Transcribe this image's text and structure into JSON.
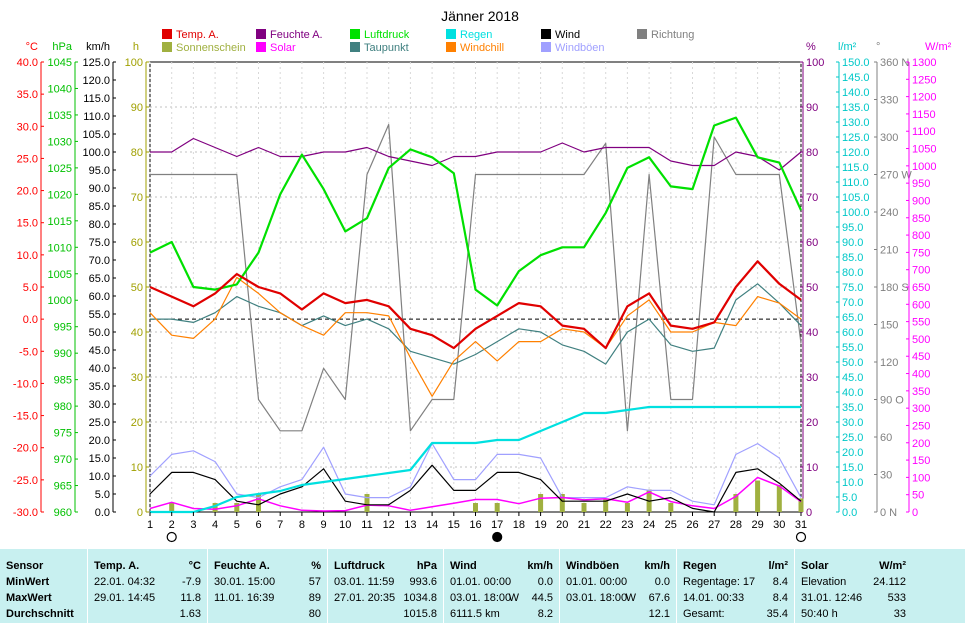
{
  "title": "Jänner 2018",
  "axes": {
    "left": [
      {
        "unit": "°C",
        "color": "#ff0000",
        "ticks": [
          "40.0",
          "35.0",
          "30.0",
          "25.0",
          "20.0",
          "15.0",
          "10.0",
          "5.0",
          "0.0",
          "-5.0",
          "-10.0",
          "-15.0",
          "-20.0",
          "-25.0",
          "-30.0"
        ]
      },
      {
        "unit": "hPa",
        "color": "#00c000",
        "ticks": [
          "1045",
          "1040",
          "1035",
          "1030",
          "1025",
          "1020",
          "1015",
          "1010",
          "1005",
          "1000",
          "995",
          "990",
          "985",
          "980",
          "975",
          "970",
          "965",
          "960"
        ]
      },
      {
        "unit": "km/h",
        "color": "#000000",
        "ticks": [
          "125.0",
          "120.0",
          "115.0",
          "110.0",
          "105.0",
          "100.0",
          "95.0",
          "90.0",
          "85.0",
          "80.0",
          "75.0",
          "70.0",
          "65.0",
          "60.0",
          "55.0",
          "50.0",
          "45.0",
          "40.0",
          "35.0",
          "30.0",
          "25.0",
          "20.0",
          "15.0",
          "10.0",
          "5.0",
          "0.0"
        ]
      },
      {
        "unit": "h",
        "color": "#a0a000",
        "ticks": [
          "100",
          "90",
          "80",
          "70",
          "60",
          "50",
          "40",
          "30",
          "20",
          "10",
          "0"
        ]
      }
    ],
    "right": [
      {
        "unit": "%",
        "color": "#800080",
        "ticks": [
          "100",
          "90",
          "80",
          "70",
          "60",
          "50",
          "40",
          "30",
          "20",
          "10",
          "0"
        ]
      },
      {
        "unit": "l/m²",
        "color": "#00c8c8",
        "ticks": [
          "150.0",
          "145.0",
          "140.0",
          "135.0",
          "130.0",
          "125.0",
          "120.0",
          "115.0",
          "110.0",
          "105.0",
          "100.0",
          "95.0",
          "90.0",
          "85.0",
          "80.0",
          "75.0",
          "70.0",
          "65.0",
          "60.0",
          "55.0",
          "50.0",
          "45.0",
          "40.0",
          "35.0",
          "30.0",
          "25.0",
          "20.0",
          "15.0",
          "10.0",
          "5.0",
          "0.0"
        ]
      },
      {
        "unit": "°",
        "color": "#808080",
        "ticks": [
          "360 N",
          "330",
          "300",
          "270 W",
          "240",
          "210",
          "180 S",
          "150",
          "120",
          "90 O",
          "60",
          "30",
          "0 N"
        ]
      },
      {
        "unit": "W/m²",
        "color": "#ff00ff",
        "ticks": [
          "1300",
          "1250",
          "1200",
          "1150",
          "1100",
          "1050",
          "1000",
          "950",
          "900",
          "850",
          "800",
          "750",
          "700",
          "650",
          "600",
          "550",
          "500",
          "450",
          "400",
          "350",
          "300",
          "250",
          "200",
          "150",
          "100",
          "50",
          "0"
        ]
      }
    ]
  },
  "legend": [
    {
      "label": "Temp. A.",
      "color": "#e00000"
    },
    {
      "label": "Feuchte A.",
      "color": "#800080"
    },
    {
      "label": "Luftdruck",
      "color": "#00e000"
    },
    {
      "label": "Regen",
      "color": "#00e0e0"
    },
    {
      "label": "Wind",
      "color": "#000000"
    },
    {
      "label": "Richtung",
      "color": "#808080"
    },
    {
      "label": "Sonnenschein",
      "color": "#a0b040"
    },
    {
      "label": "Solar",
      "color": "#ff00ff"
    },
    {
      "label": "Taupunkt",
      "color": "#408080"
    },
    {
      "label": "Windchill",
      "color": "#ff8000"
    },
    {
      "label": "Windböen",
      "color": "#a0a0ff"
    }
  ],
  "chart_data": {
    "type": "line",
    "title": "Jänner 2018",
    "x": [
      1,
      2,
      3,
      4,
      5,
      6,
      7,
      8,
      9,
      10,
      11,
      12,
      13,
      14,
      15,
      16,
      17,
      18,
      19,
      20,
      21,
      22,
      23,
      24,
      25,
      26,
      27,
      28,
      29,
      30,
      31
    ],
    "series": [
      {
        "name": "Temp. A.",
        "axis": "°C",
        "color": "#e00000",
        "values": [
          5.0,
          3.5,
          2.0,
          4.0,
          7.0,
          5.0,
          4.0,
          1.5,
          4.0,
          2.5,
          3.0,
          2.0,
          -1.5,
          -2.5,
          -4.5,
          -1.5,
          0.5,
          2.5,
          2.0,
          -1.0,
          -1.5,
          -4.5,
          2.0,
          4.0,
          -1.0,
          -1.5,
          -0.5,
          5.0,
          9.0,
          5.5,
          3.0
        ]
      },
      {
        "name": "Feuchte A.",
        "axis": "%",
        "color": "#800080",
        "values": [
          80,
          80,
          83,
          81,
          79,
          81,
          79,
          79,
          80,
          80,
          81,
          79,
          78,
          77,
          79,
          79,
          80,
          80,
          80,
          82,
          80,
          81,
          81,
          81,
          78,
          77,
          77,
          80,
          79,
          76,
          80
        ]
      },
      {
        "name": "Luftdruck",
        "axis": "hPa",
        "color": "#00e000",
        "values": [
          1009,
          1011,
          1002.5,
          1002,
          1003,
          1009,
          1020,
          1027.5,
          1021,
          1013,
          1015.5,
          1025,
          1028.5,
          1027,
          1024,
          1002,
          999,
          1005.5,
          1008.5,
          1010,
          1010,
          1016.5,
          1025,
          1027,
          1021.5,
          1021,
          1033,
          1034.5,
          1027,
          1026,
          1017
        ]
      },
      {
        "name": "Taupunkt",
        "axis": "°C",
        "color": "#408080",
        "values": [
          0.0,
          0.0,
          -0.5,
          1.0,
          3.5,
          2.0,
          1.0,
          -1.0,
          0.5,
          -1.0,
          0.0,
          -1.5,
          -5.0,
          -6.0,
          -7.0,
          -5.5,
          -3.5,
          -1.5,
          -2.0,
          -4.0,
          -5.0,
          -7.0,
          -2.0,
          0.0,
          -4.0,
          -5.0,
          -4.5,
          3.0,
          5.5,
          2.5,
          -1.0
        ]
      },
      {
        "name": "Windchill",
        "axis": "°C",
        "color": "#ff8000",
        "values": [
          1.0,
          -2.5,
          -3.0,
          0.0,
          6.5,
          4.0,
          1.0,
          -1.0,
          -2.5,
          1.0,
          1.0,
          0.5,
          -6.0,
          -12.0,
          -6.5,
          -3.5,
          -6.5,
          -3.5,
          -3.5,
          -1.5,
          -2.0,
          -4.5,
          0.5,
          3.0,
          -2.0,
          -2.0,
          -0.5,
          -1.0,
          3.5,
          2.5,
          0.0
        ]
      },
      {
        "name": "Wind",
        "axis": "km/h",
        "color": "#000000",
        "values": [
          5,
          11,
          11,
          9,
          3,
          2,
          5,
          7,
          12,
          3,
          2,
          2,
          6,
          13,
          6,
          6,
          11,
          11,
          9,
          3,
          3,
          3,
          5,
          3,
          4,
          1,
          0,
          11,
          12,
          8,
          3
        ]
      },
      {
        "name": "Windböen",
        "axis": "km/h",
        "color": "#a0a0ff",
        "values": [
          10,
          16,
          17,
          14,
          5,
          4,
          7,
          9,
          18,
          5,
          4,
          4,
          7,
          19,
          9,
          9,
          16,
          16,
          15,
          4,
          4,
          4,
          7,
          6,
          6,
          3,
          2,
          16,
          19,
          15,
          4
        ]
      },
      {
        "name": "Richtung",
        "axis": "°",
        "color": "#808080",
        "values": [
          270,
          270,
          270,
          270,
          270,
          90,
          65,
          65,
          115,
          90,
          270,
          310,
          65,
          90,
          90,
          270,
          270,
          270,
          270,
          270,
          270,
          295,
          65,
          270,
          90,
          90,
          300,
          270,
          270,
          270,
          135
        ]
      },
      {
        "name": "Regen",
        "axis": "l/m²",
        "color": "#00e0e0",
        "values": [
          0,
          0,
          0,
          2,
          5,
          6,
          7,
          9,
          10,
          11,
          12,
          13,
          14,
          23,
          23,
          23,
          24,
          24,
          27,
          30,
          33,
          33,
          34,
          35,
          35,
          35,
          35,
          35,
          35,
          35,
          35
        ]
      },
      {
        "name": "Solar",
        "axis": "W/m²",
        "color": "#ff00ff",
        "values": [
          10,
          28,
          10,
          8,
          18,
          38,
          18,
          5,
          3,
          4,
          20,
          18,
          5,
          15,
          25,
          36,
          36,
          24,
          40,
          42,
          35,
          38,
          28,
          58,
          30,
          18,
          10,
          45,
          100,
          75,
          30
        ]
      },
      {
        "name": "Sonnenschein",
        "axis": "h",
        "color": "#a0b040",
        "type": "bar",
        "values": [
          0,
          2,
          0,
          2,
          2,
          4,
          0,
          0,
          0,
          0,
          4,
          0,
          0,
          0,
          0,
          2,
          2,
          0,
          4,
          4,
          2,
          3,
          2,
          5,
          2,
          0,
          0,
          4,
          7,
          6,
          3
        ]
      }
    ],
    "xlabel": "",
    "ylabel": ""
  },
  "stats": {
    "headers": [
      {
        "name": "Sensor",
        "unit": ""
      },
      {
        "name": "Temp. A.",
        "unit": "°C"
      },
      {
        "name": "Feuchte A.",
        "unit": "%"
      },
      {
        "name": "Luftdruck",
        "unit": "hPa"
      },
      {
        "name": "Wind",
        "unit": "km/h"
      },
      {
        "name": "Windböen",
        "unit": "km/h"
      },
      {
        "name": "Regen",
        "unit": "l/m²"
      },
      {
        "name": "Solar",
        "unit": "W/m²"
      }
    ],
    "row_labels": [
      "MinWert",
      "MaxWert",
      "Durchschnitt"
    ],
    "temp": [
      [
        "22.01.  04:32",
        "-7.9"
      ],
      [
        "29.01.  14:45",
        "11.8"
      ],
      [
        "",
        "1.63"
      ]
    ],
    "feuchte": [
      [
        "30.01.  15:00",
        "57"
      ],
      [
        "11.01.  16:39",
        "89"
      ],
      [
        "",
        "80"
      ]
    ],
    "luftdruck": [
      [
        "03.01.  11:59",
        "993.6"
      ],
      [
        "27.01.  20:35",
        "1034.8"
      ],
      [
        "",
        "1015.8"
      ]
    ],
    "wind": [
      [
        "01.01.  00:00",
        "",
        "0.0"
      ],
      [
        "03.01.  18:00",
        "W",
        "44.5"
      ],
      [
        "6111.5 km",
        "",
        "8.2"
      ]
    ],
    "boeen": [
      [
        "01.01.  00:00",
        "",
        "0.0"
      ],
      [
        "03.01.  18:00",
        "W",
        "67.6"
      ],
      [
        "",
        "",
        "12.1"
      ]
    ],
    "regen": [
      [
        "Regentage: 17",
        "8.4"
      ],
      [
        "14.01.  00:33",
        "8.4"
      ],
      [
        "Gesamt:",
        "35.4"
      ]
    ],
    "solar": [
      [
        "Elevation",
        "24.112"
      ],
      [
        "31.01.  12:46",
        "533"
      ],
      [
        "50:40 h",
        "33"
      ]
    ]
  }
}
